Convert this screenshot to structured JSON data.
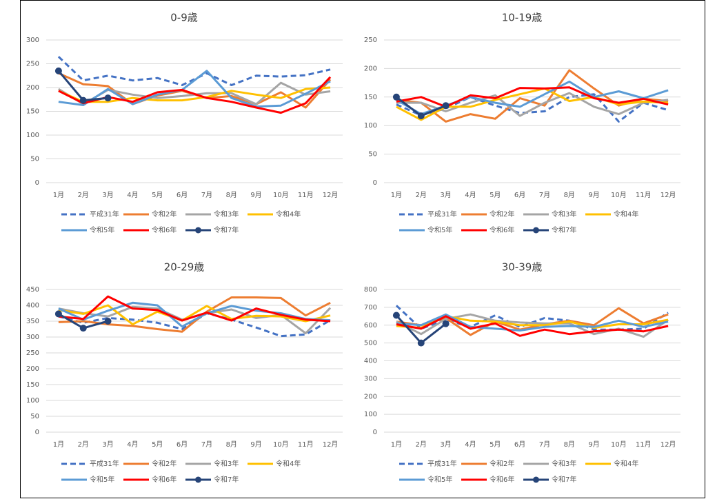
{
  "chart_data": [
    {
      "type": "line",
      "title": "0-9歳",
      "categories": [
        "1月",
        "2月",
        "3月",
        "4月",
        "5月",
        "6月",
        "7月",
        "8月",
        "9月",
        "10月",
        "11月",
        "12月"
      ],
      "ylim": [
        0,
        300
      ],
      "yticks": [
        0,
        50,
        100,
        150,
        200,
        250,
        300
      ],
      "grid": true,
      "series": [
        {
          "name": "平成31年",
          "color": "#4472c4",
          "dashed": true,
          "values": [
            265,
            215,
            225,
            215,
            220,
            205,
            230,
            205,
            225,
            223,
            226,
            238
          ]
        },
        {
          "name": "令和2年",
          "color": "#ed7d31",
          "values": [
            230,
            207,
            203,
            165,
            183,
            193,
            178,
            182,
            165,
            190,
            158,
            217
          ]
        },
        {
          "name": "令和3年",
          "color": "#a5a5a5",
          "values": [
            197,
            165,
            195,
            185,
            178,
            182,
            188,
            188,
            165,
            210,
            185,
            192
          ]
        },
        {
          "name": "令和4年",
          "color": "#ffc000",
          "values": [
            193,
            170,
            170,
            178,
            173,
            173,
            180,
            193,
            185,
            178,
            197,
            200
          ]
        },
        {
          "name": "令和5年",
          "color": "#5b9bd5",
          "values": [
            170,
            163,
            197,
            165,
            185,
            195,
            235,
            178,
            160,
            162,
            187,
            213
          ]
        },
        {
          "name": "令和6年",
          "color": "#ff0000",
          "values": [
            193,
            167,
            180,
            170,
            190,
            195,
            178,
            170,
            158,
            147,
            167,
            222
          ]
        },
        {
          "name": "令和7年",
          "color": "#264478",
          "markers": true,
          "values": [
            235,
            173,
            178,
            null,
            null,
            null,
            null,
            null,
            null,
            null,
            null,
            null
          ]
        }
      ]
    },
    {
      "type": "line",
      "title": "10-19歳",
      "categories": [
        "1月",
        "2月",
        "3月",
        "4月",
        "5月",
        "6月",
        "7月",
        "8月",
        "9月",
        "10月",
        "11月",
        "12月"
      ],
      "ylim": [
        0,
        250
      ],
      "yticks": [
        0,
        50,
        100,
        150,
        200,
        250
      ],
      "grid": true,
      "series": [
        {
          "name": "平成31年",
          "color": "#4472c4",
          "dashed": true,
          "values": [
            137,
            118,
            130,
            150,
            135,
            122,
            125,
            150,
            155,
            107,
            140,
            127
          ]
        },
        {
          "name": "令和2年",
          "color": "#ed7d31",
          "values": [
            145,
            140,
            107,
            120,
            112,
            148,
            135,
            197,
            165,
            135,
            147,
            143
          ]
        },
        {
          "name": "令和3年",
          "color": "#a5a5a5",
          "values": [
            140,
            140,
            125,
            140,
            153,
            117,
            140,
            157,
            133,
            120,
            140,
            145
          ]
        },
        {
          "name": "令和4年",
          "color": "#ffc000",
          "values": [
            133,
            110,
            133,
            133,
            145,
            155,
            165,
            143,
            150,
            137,
            142,
            140
          ]
        },
        {
          "name": "令和5年",
          "color": "#5b9bd5",
          "values": [
            145,
            120,
            135,
            150,
            140,
            133,
            155,
            177,
            150,
            160,
            148,
            162
          ]
        },
        {
          "name": "令和6年",
          "color": "#ff0000",
          "values": [
            142,
            150,
            133,
            153,
            148,
            166,
            165,
            167,
            148,
            140,
            147,
            137
          ]
        },
        {
          "name": "令和7年",
          "color": "#264478",
          "markers": true,
          "values": [
            150,
            117,
            135,
            null,
            null,
            null,
            null,
            null,
            null,
            null,
            null,
            null
          ]
        }
      ]
    },
    {
      "type": "line",
      "title": "20-29歳",
      "categories": [
        "1月",
        "2月",
        "3月",
        "4月",
        "5月",
        "6月",
        "7月",
        "8月",
        "9月",
        "10月",
        "11月",
        "12月"
      ],
      "ylim": [
        0,
        450
      ],
      "yticks": [
        0,
        50,
        100,
        150,
        200,
        250,
        300,
        350,
        400,
        450
      ],
      "grid": true,
      "series": [
        {
          "name": "平成31年",
          "color": "#4472c4",
          "dashed": true,
          "values": [
            365,
            345,
            360,
            355,
            345,
            325,
            375,
            355,
            330,
            303,
            308,
            353
          ]
        },
        {
          "name": "令和2年",
          "color": "#ed7d31",
          "values": [
            347,
            350,
            340,
            335,
            325,
            317,
            380,
            425,
            425,
            423,
            368,
            408
          ]
        },
        {
          "name": "令和3年",
          "color": "#a5a5a5",
          "values": [
            390,
            375,
            365,
            395,
            390,
            355,
            375,
            387,
            360,
            370,
            312,
            392
          ]
        },
        {
          "name": "令和4年",
          "color": "#ffc000",
          "values": [
            385,
            373,
            400,
            340,
            380,
            352,
            398,
            357,
            367,
            365,
            350,
            368
          ]
        },
        {
          "name": "令和5年",
          "color": "#5b9bd5",
          "values": [
            390,
            355,
            383,
            408,
            400,
            333,
            375,
            398,
            383,
            375,
            357,
            353
          ]
        },
        {
          "name": "令和6年",
          "color": "#ff0000",
          "values": [
            365,
            357,
            428,
            390,
            385,
            352,
            377,
            352,
            390,
            370,
            355,
            350
          ]
        },
        {
          "name": "令和7年",
          "color": "#264478",
          "markers": true,
          "values": [
            373,
            328,
            350,
            null,
            null,
            null,
            null,
            null,
            null,
            null,
            null,
            null
          ]
        }
      ]
    },
    {
      "type": "line",
      "title": "30-39歳",
      "categories": [
        "1月",
        "2月",
        "3月",
        "4月",
        "5月",
        "6月",
        "7月",
        "8月",
        "9月",
        "10月",
        "11月",
        "12月"
      ],
      "ylim": [
        0,
        800
      ],
      "yticks": [
        0,
        100,
        200,
        300,
        400,
        500,
        600,
        700,
        800
      ],
      "grid": true,
      "series": [
        {
          "name": "平成31年",
          "color": "#4472c4",
          "dashed": true,
          "values": [
            710,
            580,
            630,
            590,
            655,
            590,
            640,
            625,
            575,
            575,
            580,
            670
          ]
        },
        {
          "name": "令和2年",
          "color": "#ed7d31",
          "values": [
            620,
            600,
            640,
            545,
            620,
            575,
            605,
            625,
            600,
            695,
            610,
            660
          ]
        },
        {
          "name": "令和3年",
          "color": "#a5a5a5",
          "values": [
            620,
            550,
            635,
            660,
            625,
            615,
            610,
            610,
            550,
            580,
            535,
            630
          ]
        },
        {
          "name": "令和4年",
          "color": "#ffc000",
          "values": [
            595,
            585,
            650,
            625,
            620,
            600,
            600,
            620,
            585,
            605,
            605,
            630
          ]
        },
        {
          "name": "令和5年",
          "color": "#5b9bd5",
          "values": [
            610,
            600,
            660,
            590,
            580,
            570,
            590,
            595,
            590,
            625,
            590,
            620
          ]
        },
        {
          "name": "令和6年",
          "color": "#ff0000",
          "values": [
            605,
            580,
            650,
            580,
            610,
            540,
            575,
            550,
            565,
            575,
            565,
            595
          ]
        },
        {
          "name": "令和7年",
          "color": "#264478",
          "markers": true,
          "values": [
            655,
            500,
            608,
            null,
            null,
            null,
            null,
            null,
            null,
            null,
            null,
            null
          ]
        }
      ]
    }
  ]
}
